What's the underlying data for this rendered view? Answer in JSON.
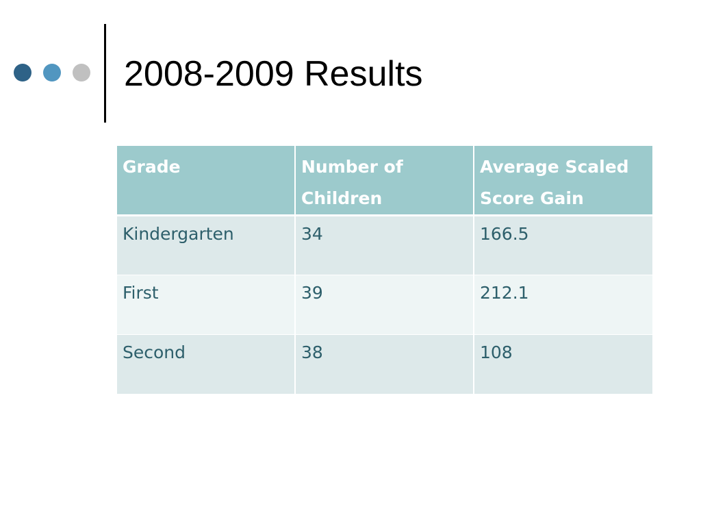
{
  "slide": {
    "title": "2008-2009 Results"
  },
  "colors": {
    "dot_dark": "#2e6287",
    "dot_mid": "#5196c0",
    "dot_light": "#c0c0c0",
    "header_bg": "#9ccacc",
    "header_text": "#ffffff",
    "row_odd_bg": "#dde9ea",
    "row_even_bg": "#eef5f5",
    "body_text": "#2d5f6b"
  },
  "table": {
    "headers": [
      "Grade",
      "Number of Children",
      "Average Scaled Score Gain"
    ],
    "rows": [
      [
        "Kindergarten",
        "34",
        "166.5"
      ],
      [
        "First",
        "39",
        "212.1"
      ],
      [
        "Second",
        "38",
        "108"
      ]
    ]
  }
}
